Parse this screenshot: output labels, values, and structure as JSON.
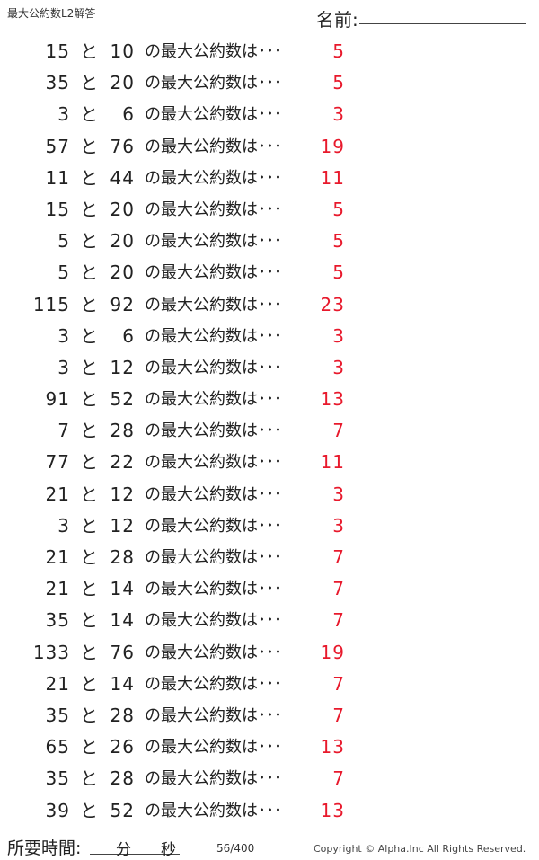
{
  "header": {
    "title": "最大公約数L2解答",
    "name_label": "名前:"
  },
  "connector": "と",
  "question_suffix": "の最大公約数は･･･",
  "problems": [
    {
      "a": "15",
      "b": "10",
      "answer": "5"
    },
    {
      "a": "35",
      "b": "20",
      "answer": "5"
    },
    {
      "a": "3",
      "b": "6",
      "answer": "3"
    },
    {
      "a": "57",
      "b": "76",
      "answer": "19"
    },
    {
      "a": "11",
      "b": "44",
      "answer": "11"
    },
    {
      "a": "15",
      "b": "20",
      "answer": "5"
    },
    {
      "a": "5",
      "b": "20",
      "answer": "5"
    },
    {
      "a": "5",
      "b": "20",
      "answer": "5"
    },
    {
      "a": "115",
      "b": "92",
      "answer": "23"
    },
    {
      "a": "3",
      "b": "6",
      "answer": "3"
    },
    {
      "a": "3",
      "b": "12",
      "answer": "3"
    },
    {
      "a": "91",
      "b": "52",
      "answer": "13"
    },
    {
      "a": "7",
      "b": "28",
      "answer": "7"
    },
    {
      "a": "77",
      "b": "22",
      "answer": "11"
    },
    {
      "a": "21",
      "b": "12",
      "answer": "3"
    },
    {
      "a": "3",
      "b": "12",
      "answer": "3"
    },
    {
      "a": "21",
      "b": "28",
      "answer": "7"
    },
    {
      "a": "21",
      "b": "14",
      "answer": "7"
    },
    {
      "a": "35",
      "b": "14",
      "answer": "7"
    },
    {
      "a": "133",
      "b": "76",
      "answer": "19"
    },
    {
      "a": "21",
      "b": "14",
      "answer": "7"
    },
    {
      "a": "35",
      "b": "28",
      "answer": "7"
    },
    {
      "a": "65",
      "b": "26",
      "answer": "13"
    },
    {
      "a": "35",
      "b": "28",
      "answer": "7"
    },
    {
      "a": "39",
      "b": "52",
      "answer": "13"
    }
  ],
  "footer": {
    "time_label": "所要時間:",
    "minutes_label": "分",
    "seconds_label": "秒",
    "page": "56/400",
    "copyright": "Copyright ©  Alpha.Inc All Rights Reserved."
  },
  "colors": {
    "answer": "#e8192c"
  }
}
